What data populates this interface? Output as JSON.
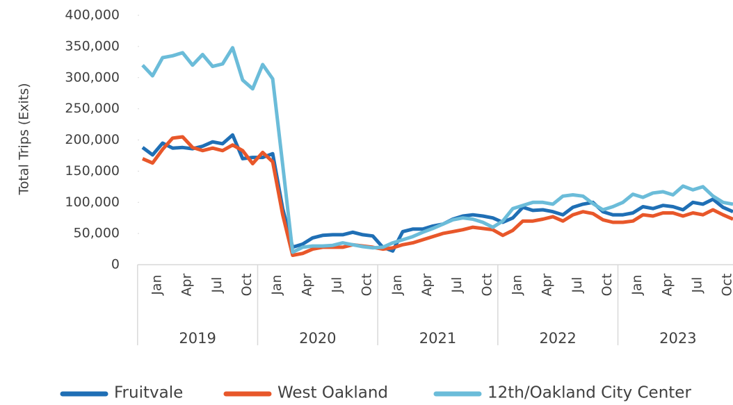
{
  "chart_data": {
    "type": "line",
    "y_label": "Total Trips (Exits)",
    "categories": [
      "Jan",
      null,
      null,
      "Apr",
      null,
      null,
      "Jul",
      null,
      null,
      "Oct",
      null,
      null,
      "Jan",
      null,
      null,
      "Apr",
      null,
      null,
      "Jul",
      null,
      null,
      "Oct",
      null,
      null,
      "Jan",
      null,
      null,
      "Apr",
      null,
      null,
      "Jul",
      null,
      null,
      "Oct",
      null,
      null,
      "Jan",
      null,
      null,
      "Apr",
      null,
      null,
      "Jul",
      null,
      null,
      "Oct",
      null,
      null,
      "Jan",
      null,
      null,
      "Apr",
      null,
      null,
      "Jul",
      null,
      null,
      "Oct",
      null,
      null
    ],
    "groups": [
      "2019",
      "2020",
      "2021",
      "2022",
      "2023"
    ],
    "series": [
      {
        "name": "Fruitvale",
        "color": "#1f6fb5",
        "values": [
          188000,
          176000,
          195000,
          187000,
          188000,
          186000,
          190000,
          197000,
          194000,
          208000,
          170000,
          172000,
          172000,
          178000,
          90000,
          28000,
          33000,
          43000,
          47000,
          48000,
          48000,
          52000,
          48000,
          46000,
          28000,
          22000,
          53000,
          57000,
          57000,
          62000,
          65000,
          73000,
          78000,
          80000,
          78000,
          75000,
          68000,
          75000,
          92000,
          87000,
          88000,
          85000,
          80000,
          92000,
          97000,
          100000,
          85000,
          80000,
          80000,
          83000,
          93000,
          90000,
          95000,
          93000,
          88000,
          100000,
          97000,
          105000,
          92000,
          85000
        ]
      },
      {
        "name": "West Oakland",
        "color": "#e8572a",
        "values": [
          170000,
          163000,
          185000,
          203000,
          205000,
          188000,
          183000,
          187000,
          183000,
          192000,
          183000,
          162000,
          180000,
          165000,
          80000,
          15000,
          18000,
          25000,
          28000,
          28000,
          28000,
          32000,
          30000,
          28000,
          25000,
          27000,
          32000,
          35000,
          40000,
          45000,
          50000,
          53000,
          56000,
          60000,
          58000,
          56000,
          47000,
          55000,
          70000,
          70000,
          73000,
          77000,
          70000,
          80000,
          85000,
          82000,
          72000,
          68000,
          68000,
          70000,
          80000,
          78000,
          83000,
          83000,
          78000,
          83000,
          80000,
          88000,
          80000,
          73000
        ]
      },
      {
        "name": "12th/Oakland City Center",
        "color": "#6bbcd9",
        "values": [
          320000,
          303000,
          332000,
          335000,
          340000,
          320000,
          337000,
          318000,
          322000,
          348000,
          296000,
          282000,
          321000,
          298000,
          160000,
          20000,
          28000,
          30000,
          30000,
          31000,
          35000,
          32000,
          29000,
          27000,
          28000,
          35000,
          40000,
          45000,
          52000,
          58000,
          65000,
          72000,
          75000,
          73000,
          68000,
          60000,
          70000,
          90000,
          95000,
          100000,
          100000,
          97000,
          110000,
          112000,
          110000,
          98000,
          88000,
          93000,
          100000,
          113000,
          108000,
          115000,
          117000,
          112000,
          126000,
          120000,
          125000,
          110000,
          100000,
          97000
        ]
      }
    ],
    "ylim": [
      0,
      400000
    ],
    "yticks": [
      0,
      {
        "value": 50000,
        "label": "50,000"
      },
      {
        "value": 100000,
        "label": "100,000"
      },
      {
        "value": 150000,
        "label": "150,000"
      },
      {
        "value": 200000,
        "label": "200,000"
      },
      {
        "value": 250000,
        "label": "250,000"
      },
      {
        "value": 300000,
        "label": "300,000"
      },
      {
        "value": 350000,
        "label": "350,000"
      },
      {
        "value": 400000,
        "label": "400,000"
      }
    ],
    "legend": "bottom"
  }
}
